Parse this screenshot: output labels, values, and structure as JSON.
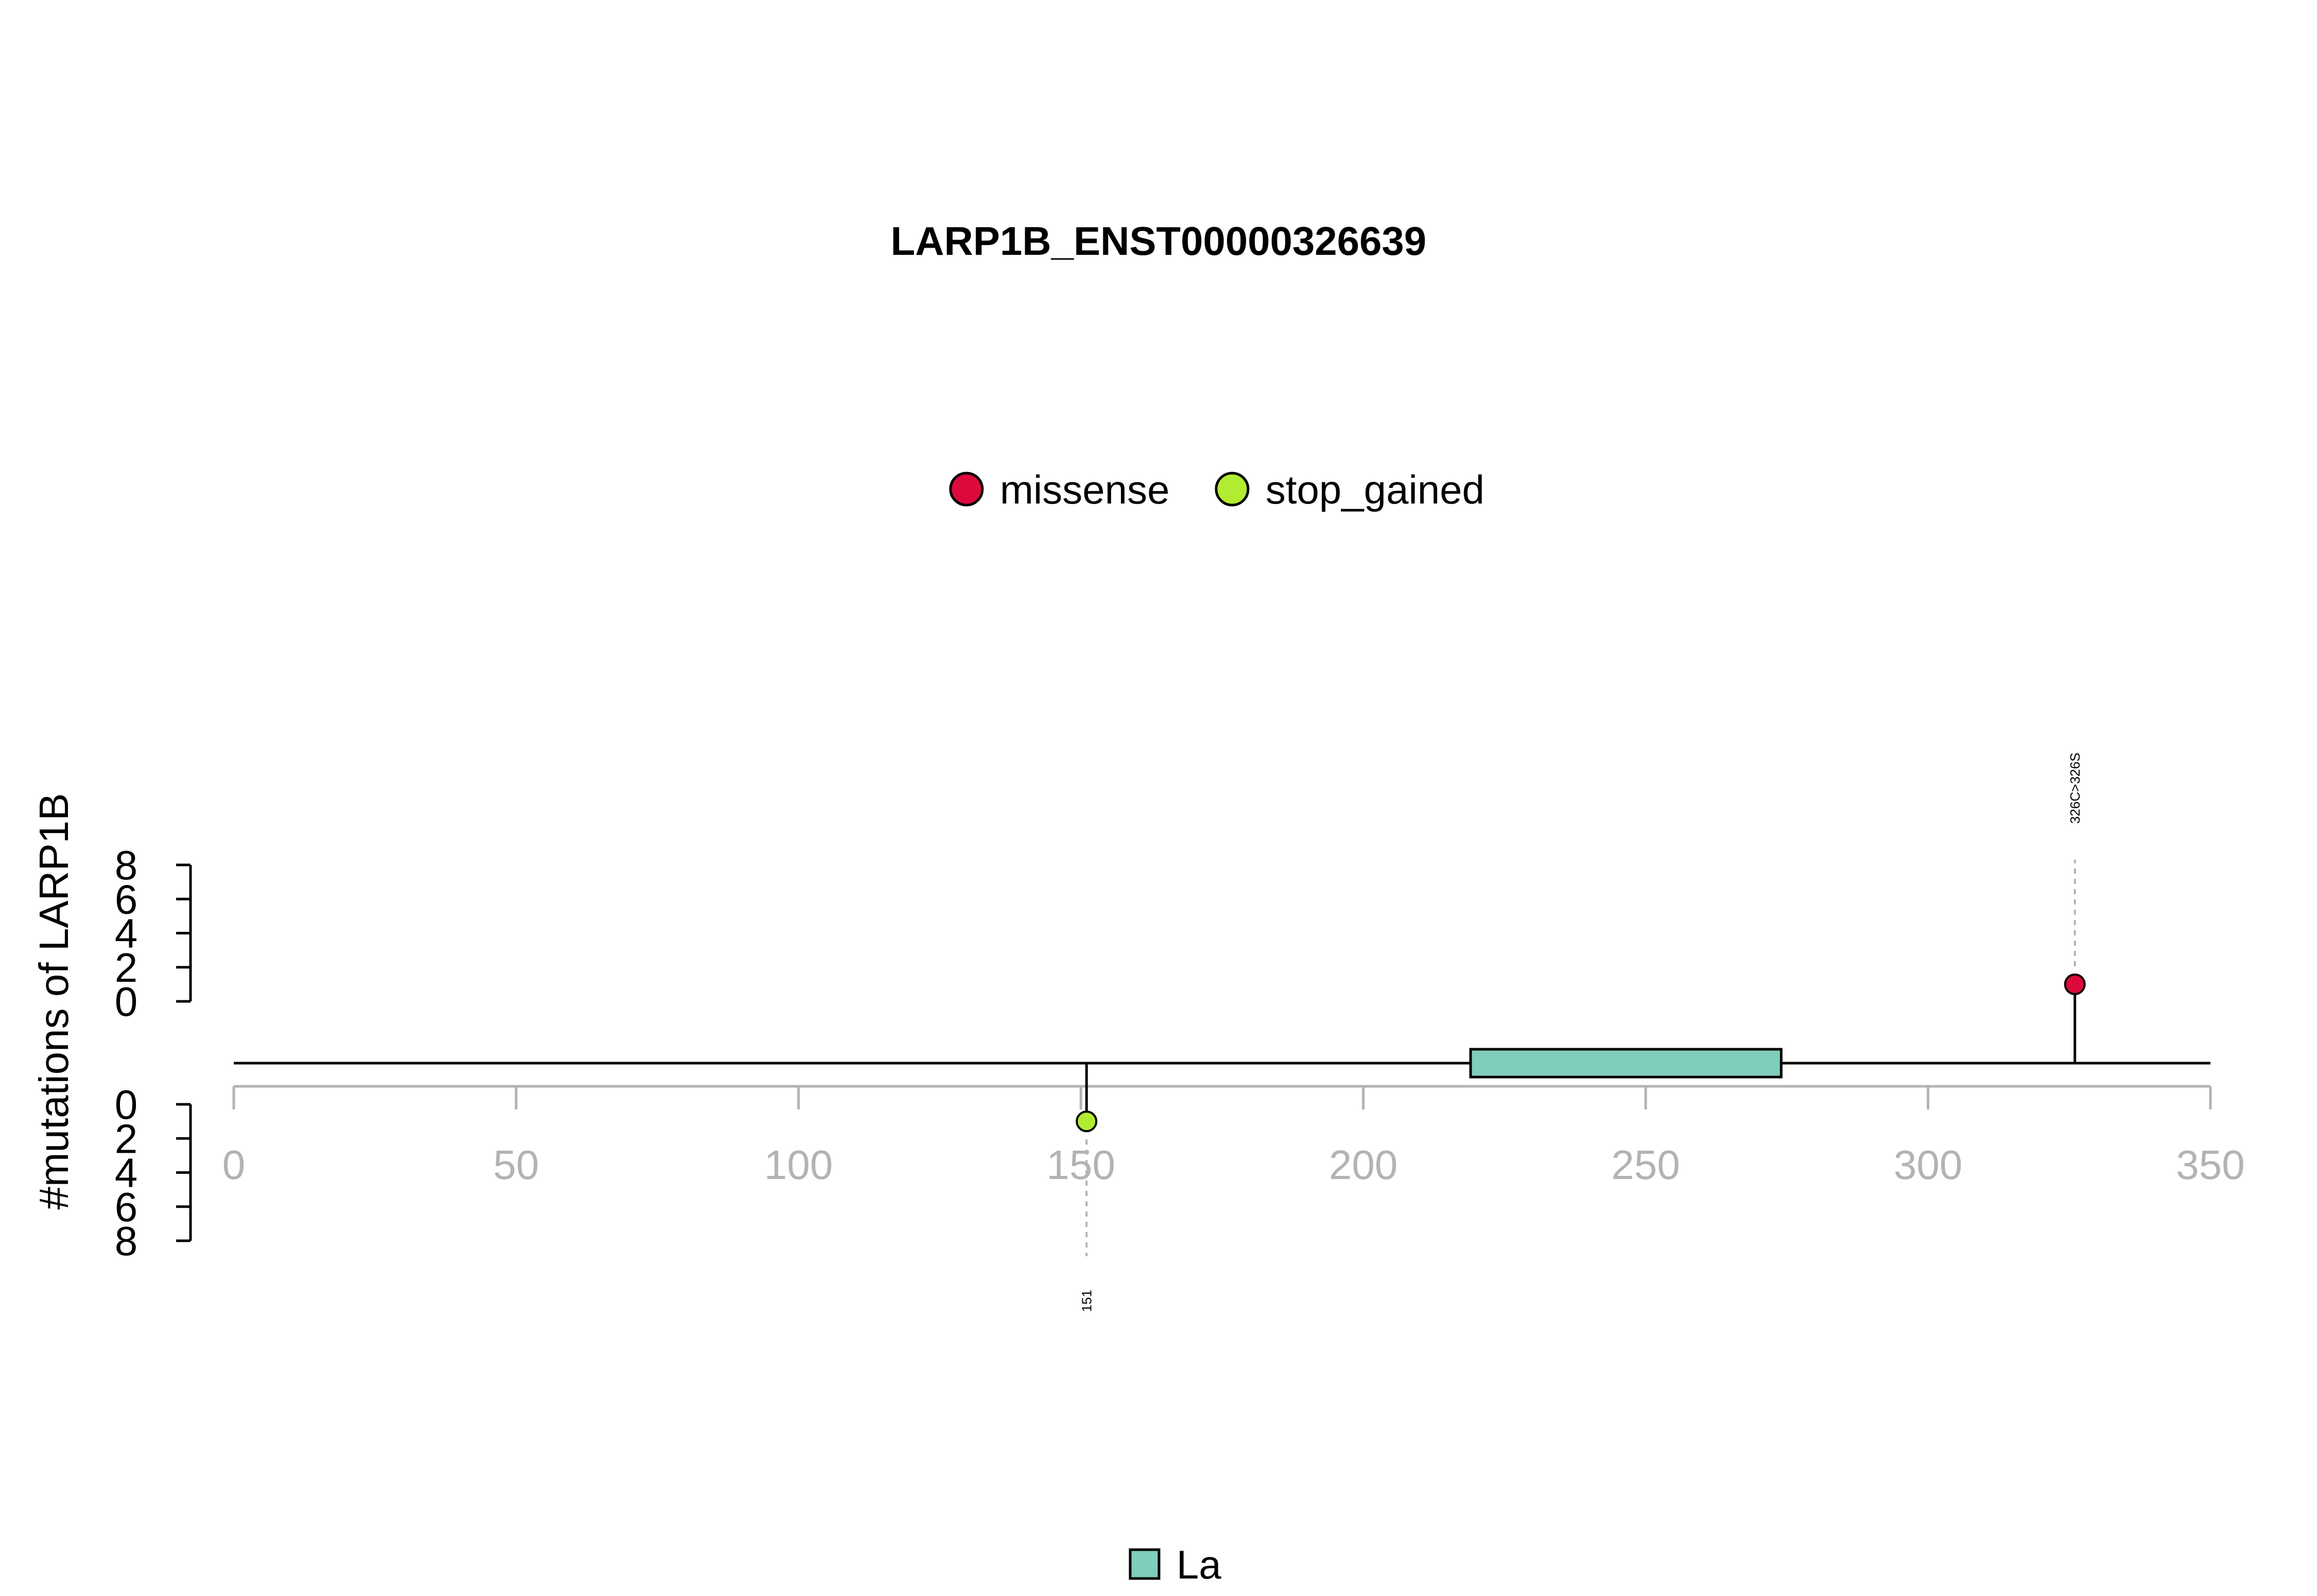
{
  "chart_data": {
    "type": "lollipop",
    "title": "LARP1B_ENST00000326639",
    "ylabel": "#mutations of LARP1B",
    "xlim": [
      0,
      350
    ],
    "x_ticks": [
      0,
      50,
      100,
      150,
      200,
      250,
      300,
      350
    ],
    "y_ticks_upper": [
      0,
      2,
      4,
      6,
      8
    ],
    "y_ticks_lower": [
      0,
      2,
      4,
      6,
      8
    ],
    "protein_length": 350,
    "mutation_legend": [
      {
        "name": "missense",
        "color": "#DC0A3C"
      },
      {
        "name": "stop_gained",
        "color": "#B2EC32"
      }
    ],
    "domain_legend": [
      {
        "name": "La",
        "color": "#7FCDBB"
      }
    ],
    "domains": [
      {
        "name": "La",
        "start": 219,
        "end": 274,
        "color": "#7FCDBB"
      }
    ],
    "mutations": [
      {
        "position": 326,
        "count": 1,
        "type": "missense",
        "label": "326C>326S",
        "side": "up"
      },
      {
        "position": 151,
        "count": 1,
        "type": "stop_gained",
        "label": "151",
        "side": "down"
      }
    ]
  }
}
